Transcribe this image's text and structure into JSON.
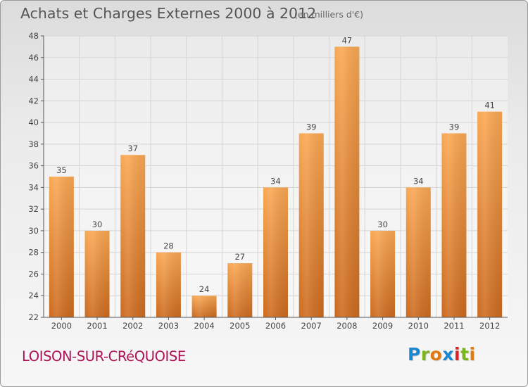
{
  "header": {
    "title": "Achats et Charges Externes 2000 à 2012",
    "subtitle": "(en milliers d'€)"
  },
  "footer": {
    "commune": "LOISON-SUR-CRéQUOISE",
    "logo": "Proxiti",
    "logo_colors": [
      "#1a88d0",
      "#7ab51d",
      "#e07b13",
      "#1a88d0",
      "#d4232b",
      "#7ab51d",
      "#e07b13"
    ]
  },
  "colors": {
    "bar_top": "#f9a752",
    "bar_bottom": "#cc6a1e",
    "gridline": "#d5d5d5",
    "axis": "#555555"
  },
  "chart_data": {
    "type": "bar",
    "title": "Achats et Charges Externes 2000 à 2012",
    "subtitle": "(en milliers d'€)",
    "categories": [
      "2000",
      "2001",
      "2002",
      "2003",
      "2004",
      "2005",
      "2006",
      "2007",
      "2008",
      "2009",
      "2010",
      "2011",
      "2012"
    ],
    "values": [
      35,
      30,
      37,
      28,
      24,
      27,
      34,
      39,
      47,
      30,
      34,
      39,
      41
    ],
    "ylim": [
      22,
      48
    ],
    "yticks": [
      22,
      24,
      26,
      28,
      30,
      32,
      34,
      36,
      38,
      40,
      42,
      44,
      46,
      48
    ],
    "grid": true,
    "data_labels": true
  }
}
